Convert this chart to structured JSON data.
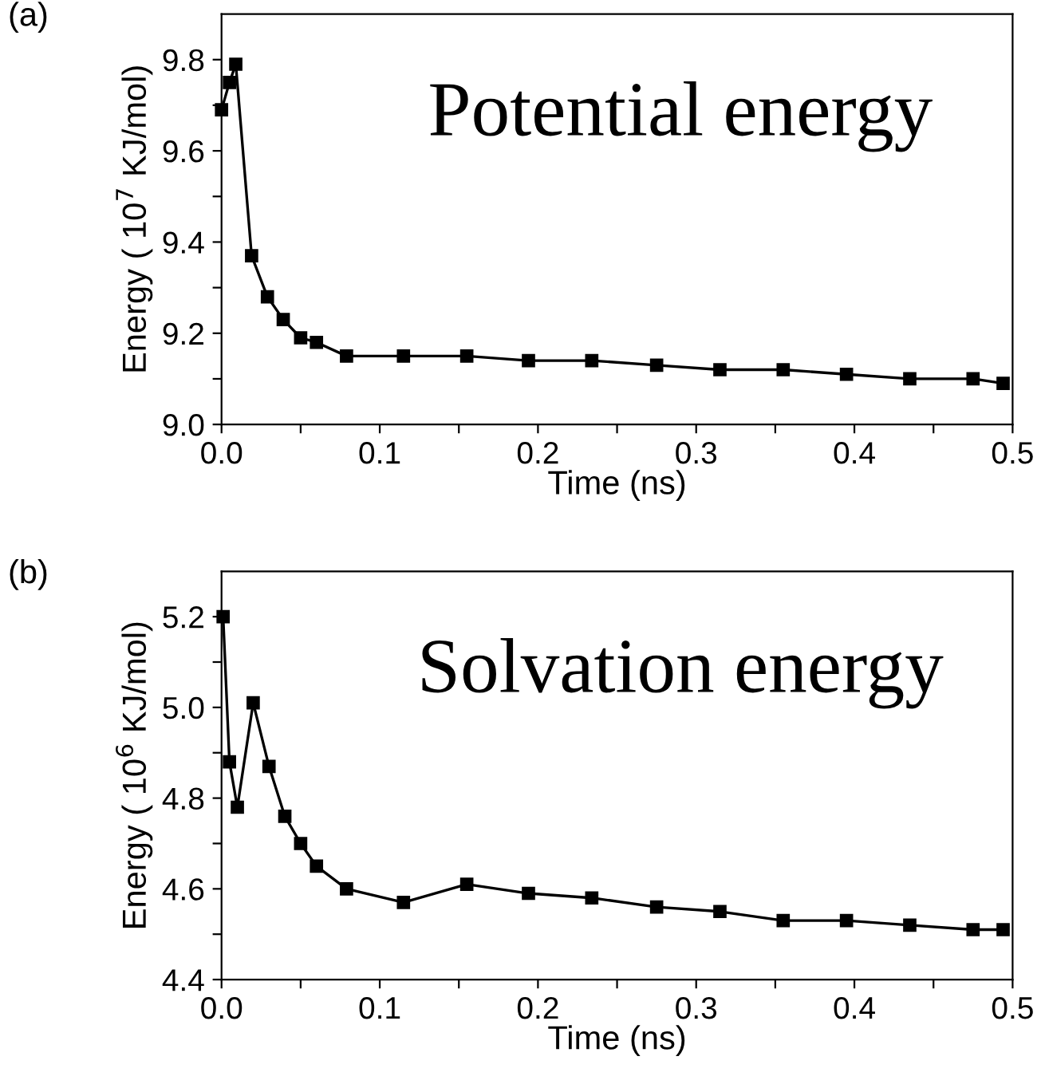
{
  "chart_data": [
    {
      "type": "line",
      "title": "(a)",
      "xlabel": "Time (ns)",
      "ylabel": "Energy ( 10$^{7}$ KJ/mol)",
      "annotations": [
        "Potential energy"
      ],
      "x": [
        0.0,
        0.005,
        0.009,
        0.019,
        0.029,
        0.039,
        0.05,
        0.06,
        0.079,
        0.115,
        0.155,
        0.194,
        0.234,
        0.275,
        0.315,
        0.355,
        0.395,
        0.435,
        0.475,
        0.494
      ],
      "series": [
        {
          "color": "#000000",
          "values": [
            9.69,
            9.75,
            9.79,
            9.37,
            9.28,
            9.23,
            9.19,
            9.18,
            9.15,
            9.15,
            9.15,
            9.14,
            9.14,
            9.13,
            9.12,
            9.12,
            9.11,
            9.1,
            9.1,
            9.09
          ]
        }
      ],
      "xlim": [
        0.0,
        0.5
      ],
      "ylim": [
        9.0,
        9.9
      ],
      "xticks": [
        {
          "value": 0.0,
          "label": "0.0"
        },
        {
          "value": 0.05,
          "label": null
        },
        0.1,
        {
          "value": 0.15,
          "label": null
        },
        0.2,
        {
          "value": 0.25,
          "label": null
        },
        0.3,
        {
          "value": 0.35,
          "label": null
        },
        0.4,
        {
          "value": 0.45,
          "label": null
        },
        0.5
      ],
      "yticks": [
        {
          "value": 9.0,
          "label": "9.0"
        },
        {
          "value": 9.1,
          "label": null
        },
        9.2,
        {
          "value": 9.3,
          "label": null
        },
        9.4,
        {
          "value": 9.5,
          "label": null
        },
        9.6,
        {
          "value": 9.7,
          "label": null
        },
        9.8
      ],
      "marker": "square",
      "grid": false
    },
    {
      "type": "line",
      "title": "(b)",
      "xlabel": "Time (ns)",
      "ylabel": "Energy ( 10$^{6}$ KJ/mol)",
      "annotations": [
        "Solvation energy"
      ],
      "x": [
        0.001,
        0.005,
        0.01,
        0.02,
        0.03,
        0.04,
        0.05,
        0.06,
        0.079,
        0.115,
        0.155,
        0.194,
        0.234,
        0.275,
        0.315,
        0.355,
        0.395,
        0.435,
        0.475,
        0.494
      ],
      "series": [
        {
          "color": "#000000",
          "values": [
            5.2,
            4.88,
            4.78,
            5.01,
            4.87,
            4.76,
            4.7,
            4.65,
            4.6,
            4.57,
            4.61,
            4.59,
            4.58,
            4.56,
            4.55,
            4.53,
            4.53,
            4.52,
            4.51,
            4.51
          ]
        }
      ],
      "xlim": [
        0.0,
        0.5
      ],
      "ylim": [
        4.4,
        5.3
      ],
      "xticks": [
        {
          "value": 0.0,
          "label": "0.0"
        },
        {
          "value": 0.05,
          "label": null
        },
        0.1,
        {
          "value": 0.15,
          "label": null
        },
        0.2,
        {
          "value": 0.25,
          "label": null
        },
        0.3,
        {
          "value": 0.35,
          "label": null
        },
        0.4,
        {
          "value": 0.45,
          "label": null
        },
        0.5
      ],
      "yticks": [
        4.4,
        {
          "value": 4.5,
          "label": null
        },
        4.6,
        {
          "value": 4.7,
          "label": null
        },
        4.8,
        {
          "value": 4.9,
          "label": null
        },
        {
          "value": 5.0,
          "label": "5.0"
        },
        {
          "value": 5.1,
          "label": null
        },
        5.2
      ],
      "marker": "square",
      "grid": false
    }
  ]
}
